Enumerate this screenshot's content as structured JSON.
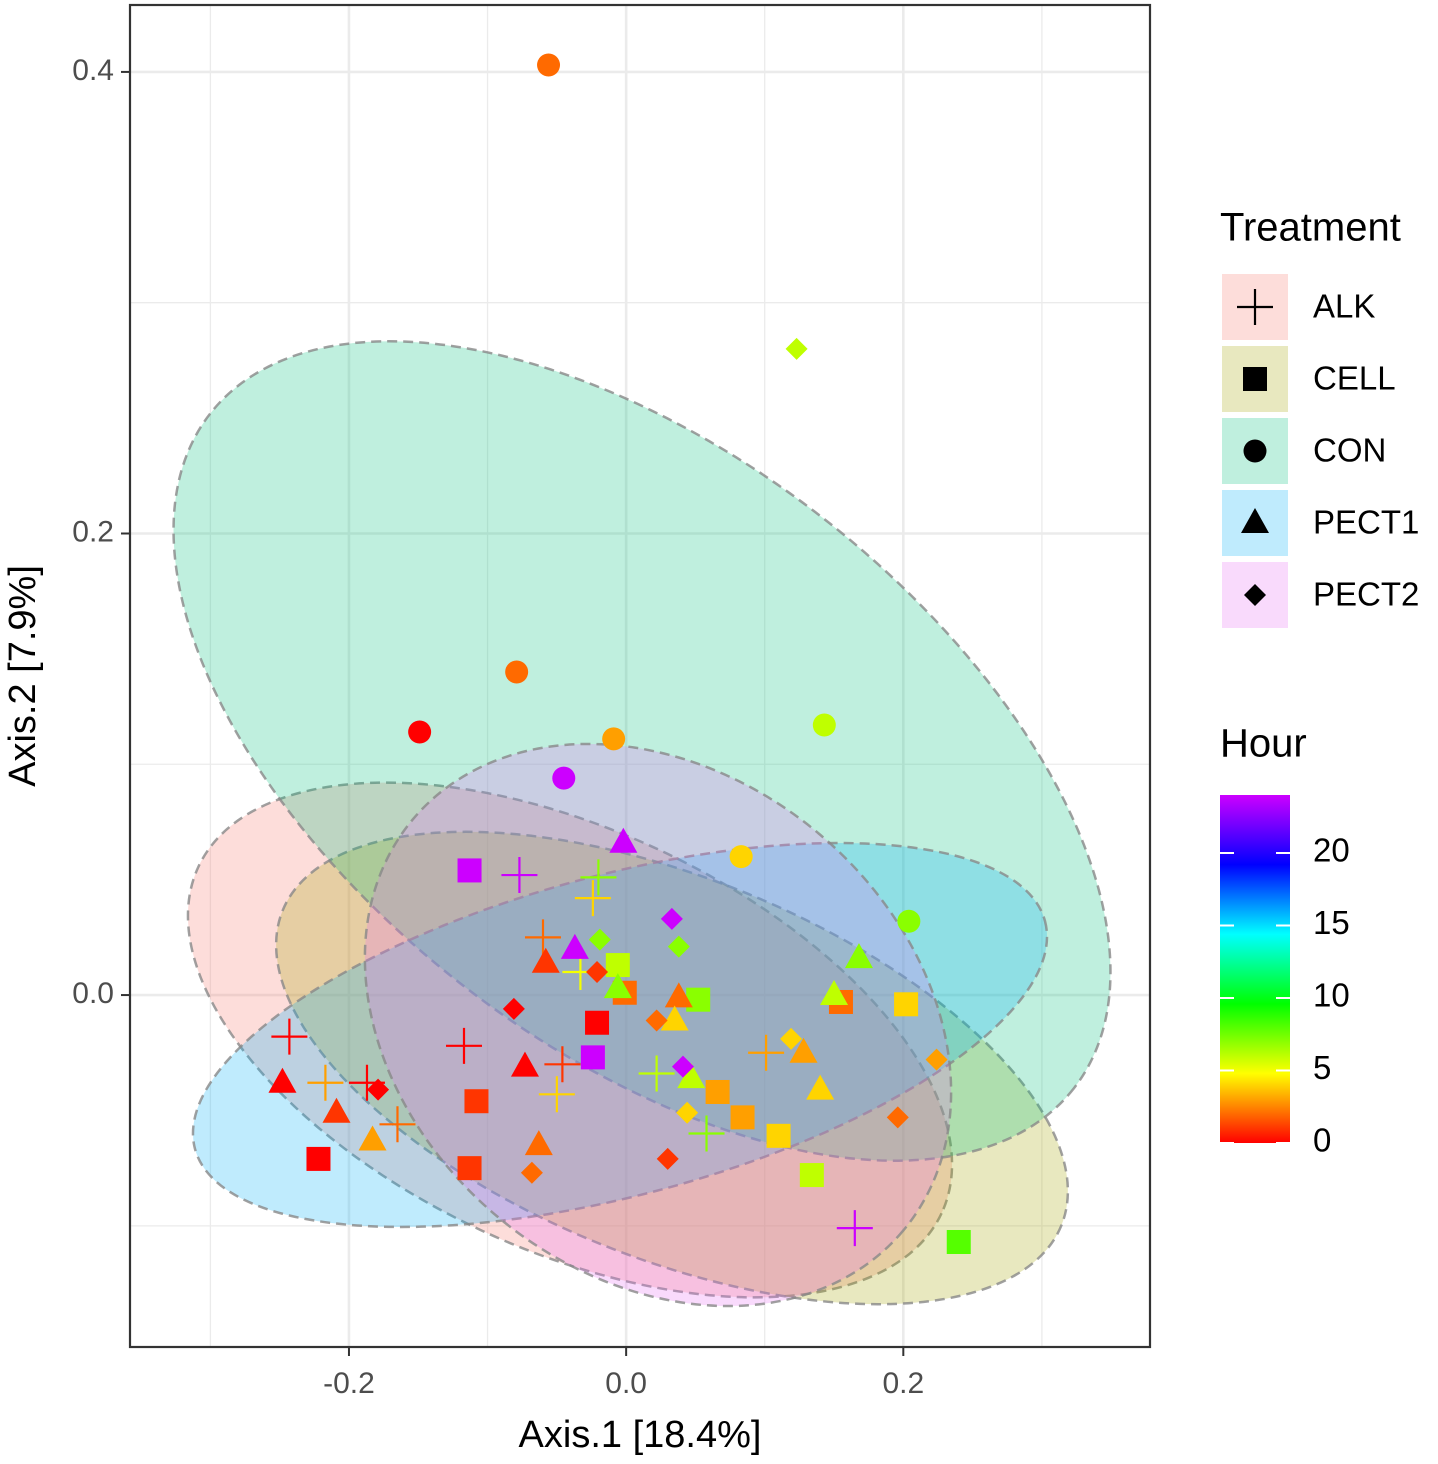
{
  "chart_data": {
    "type": "scatter",
    "xlabel": "Axis.1   [18.4%]",
    "ylabel": "Axis.2   [7.9%]",
    "xlim": [
      -0.358,
      0.378
    ],
    "ylim": [
      -0.1525,
      0.429
    ],
    "xticks": [
      -0.2,
      {
        "value": 0,
        "label": "0.0"
      },
      0.2
    ],
    "yticks": [
      {
        "value": 0,
        "label": "0.0"
      },
      0.2,
      0.4
    ],
    "xminor": [
      -0.3,
      -0.1,
      0.1,
      0.3
    ],
    "yminor": [
      -0.1,
      0.1,
      0.3
    ],
    "grid": true,
    "legend_title": "Treatment",
    "colorbar": {
      "title": "Hour",
      "lim": [
        0,
        24
      ],
      "ticks": [
        0,
        5,
        10,
        15,
        20
      ],
      "colors": [
        "#ff0000",
        "#ffff00",
        "#00ff00",
        "#00ffff",
        "#0000ff",
        "#cc00ff"
      ]
    },
    "series": [
      {
        "name": "ALK",
        "shape": "plus",
        "color": "#F8766D",
        "x": [
          -0.077,
          -0.02,
          -0.024,
          -0.06,
          -0.033,
          -0.243,
          -0.117,
          -0.046,
          -0.217,
          -0.187,
          -0.165,
          -0.05,
          0.101,
          0.022,
          0.058,
          0.165
        ],
        "y": [
          0.052,
          0.051,
          0.042,
          0.025,
          0.01,
          -0.018,
          -0.022,
          -0.03,
          -0.038,
          -0.038,
          -0.056,
          -0.043,
          -0.025,
          -0.034,
          -0.06,
          -0.101
        ],
        "hour": [
          24,
          7,
          4,
          2,
          5,
          0,
          0,
          1,
          3,
          0,
          2,
          4,
          3,
          6,
          7,
          24
        ]
      },
      {
        "name": "CELL",
        "shape": "square",
        "color": "#A3A500",
        "x": [
          -0.113,
          -0.006,
          -0.021,
          -0.024,
          -0.001,
          0.052,
          0.155,
          0.202,
          -0.108,
          -0.113,
          -0.222,
          0.066,
          0.084,
          0.11,
          0.134,
          0.24
        ],
        "y": [
          0.054,
          0.013,
          -0.012,
          -0.027,
          0.001,
          -0.002,
          -0.003,
          -0.004,
          -0.046,
          -0.075,
          -0.071,
          -0.042,
          -0.053,
          -0.061,
          -0.078,
          -0.107
        ],
        "hour": [
          24,
          6,
          0,
          24,
          2,
          7,
          2,
          4,
          1,
          1,
          0,
          3,
          3,
          4,
          6,
          8
        ]
      },
      {
        "name": "CON",
        "shape": "circle",
        "color": "#00BF7D",
        "x": [
          -0.056,
          -0.079,
          -0.149,
          -0.009,
          -0.045,
          0.143,
          0.083,
          0.204
        ],
        "y": [
          0.403,
          0.14,
          0.114,
          0.111,
          0.094,
          0.117,
          0.06,
          0.032
        ],
        "hour": [
          2,
          2,
          0,
          3,
          24,
          6,
          4,
          7
        ]
      },
      {
        "name": "PECT1",
        "shape": "triangle",
        "color": "#00B0F6",
        "x": [
          -0.002,
          -0.037,
          -0.058,
          -0.006,
          0.038,
          0.035,
          0.15,
          0.168,
          0.128,
          0.14,
          0.047,
          -0.073,
          -0.063,
          -0.248,
          -0.209,
          -0.183
        ],
        "y": [
          0.066,
          0.02,
          0.014,
          0.003,
          -0.001,
          -0.011,
          0.0,
          0.016,
          -0.025,
          -0.041,
          -0.036,
          -0.031,
          -0.065,
          -0.038,
          -0.051,
          -0.063
        ],
        "hour": [
          24,
          24,
          1,
          7,
          2,
          4,
          6,
          7,
          3,
          4,
          6,
          0,
          2,
          0,
          1,
          3
        ]
      },
      {
        "name": "PECT2",
        "shape": "diamond",
        "color": "#E76BF3",
        "x": [
          0.123,
          0.033,
          0.038,
          -0.019,
          -0.021,
          -0.081,
          0.022,
          0.041,
          0.119,
          0.224,
          0.196,
          0.044,
          0.03,
          -0.068,
          -0.179
        ],
        "y": [
          0.28,
          0.033,
          0.021,
          0.024,
          0.01,
          -0.006,
          -0.011,
          -0.031,
          -0.019,
          -0.028,
          -0.053,
          -0.051,
          -0.071,
          -0.077,
          -0.041
        ],
        "hour": [
          6,
          24,
          7,
          7,
          1,
          0,
          2,
          24,
          4,
          3,
          2,
          4,
          1,
          2,
          0
        ]
      }
    ]
  }
}
